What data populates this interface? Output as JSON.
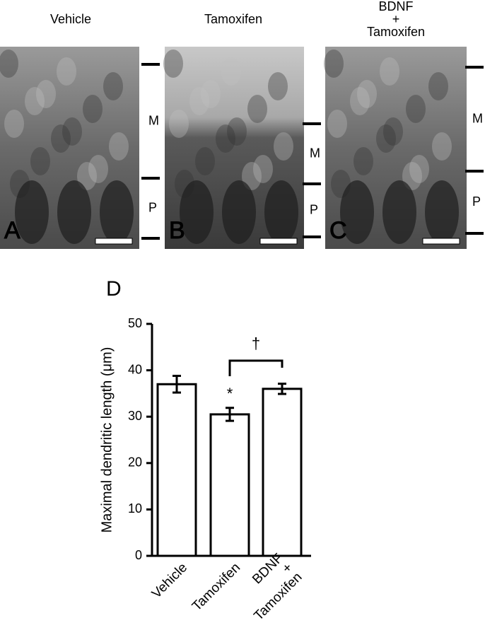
{
  "panels": [
    {
      "title": "Vehicle",
      "letter": "A",
      "layers": [
        "M",
        "P"
      ]
    },
    {
      "title": "Tamoxifen",
      "letter": "B",
      "layers": [
        "M",
        "P"
      ]
    },
    {
      "title": "BDNF\n+\nTamoxifen",
      "letter": "C",
      "layers": [
        "M",
        "P"
      ]
    }
  ],
  "chart_data": {
    "type": "bar",
    "panel_letter": "D",
    "ylabel": "Maximal dendritic length (μm)",
    "categories": [
      "Vehicle",
      "Tamoxifen",
      "BDNF\n+\nTamoxifen"
    ],
    "values": [
      37,
      30.5,
      36
    ],
    "errors": [
      1.8,
      1.4,
      1.1
    ],
    "color": "#ffffff",
    "ylim": [
      0,
      50
    ],
    "yticks": [
      0,
      10,
      20,
      30,
      40,
      50
    ],
    "annotations": [
      "*",
      "†"
    ]
  }
}
